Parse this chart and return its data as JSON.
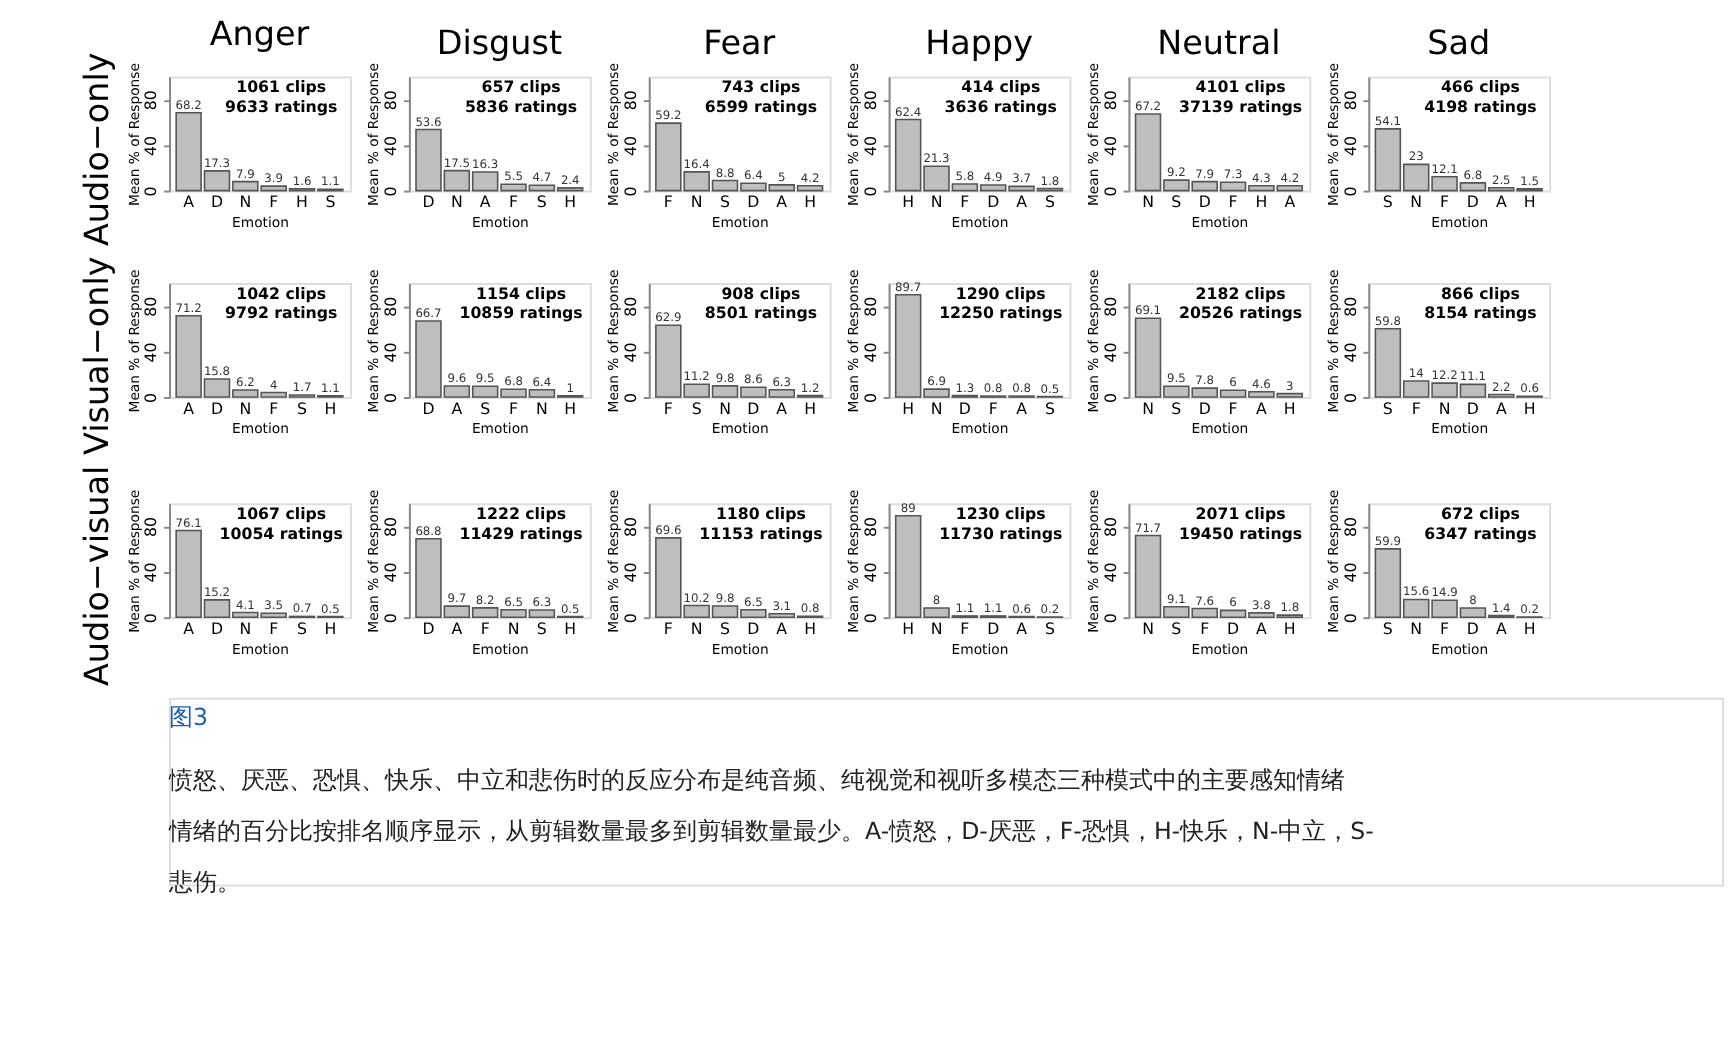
{
  "chart_data": [
    {
      "type": "bar",
      "title": "Anger",
      "xlabel": "Emotion",
      "ylabel": "Mean % of Response",
      "categories": [
        "A",
        "D",
        "N",
        "F",
        "H",
        "S"
      ],
      "values": [
        68.2,
        17.3,
        7.9,
        3.9,
        1.6,
        1.1
      ],
      "color": "#bebebe",
      "ylim": [
        0,
        100
      ],
      "yticks": [
        0,
        40,
        80
      ],
      "data_labels": true,
      "annotations": [
        "Audio−only",
        "1061 clips",
        "9633 ratings"
      ]
    },
    {
      "type": "bar",
      "title": "Disgust",
      "xlabel": "Emotion",
      "ylabel": "Mean % of Response",
      "categories": [
        "D",
        "N",
        "A",
        "F",
        "S",
        "H"
      ],
      "values": [
        53.6,
        17.5,
        16.3,
        5.5,
        4.7,
        2.4
      ],
      "color": "#bebebe",
      "ylim": [
        0,
        100
      ],
      "yticks": [
        0,
        40,
        80
      ],
      "data_labels": true,
      "annotations": [
        "657 clips",
        "5836 ratings"
      ]
    },
    {
      "type": "bar",
      "title": "Fear",
      "xlabel": "Emotion",
      "ylabel": "Mean % of Response",
      "categories": [
        "F",
        "N",
        "S",
        "D",
        "A",
        "H"
      ],
      "values": [
        59.2,
        16.4,
        8.8,
        6.4,
        5,
        4.2
      ],
      "color": "#bebebe",
      "ylim": [
        0,
        100
      ],
      "yticks": [
        0,
        40,
        80
      ],
      "data_labels": true,
      "annotations": [
        "743 clips",
        "6599 ratings"
      ]
    },
    {
      "type": "bar",
      "title": "Happy",
      "xlabel": "Emotion",
      "ylabel": "Mean % of Response",
      "categories": [
        "H",
        "N",
        "F",
        "D",
        "A",
        "S"
      ],
      "values": [
        62.4,
        21.3,
        5.8,
        4.9,
        3.7,
        1.8
      ],
      "color": "#bebebe",
      "ylim": [
        0,
        100
      ],
      "yticks": [
        0,
        40,
        80
      ],
      "data_labels": true,
      "annotations": [
        "414 clips",
        "3636 ratings"
      ]
    },
    {
      "type": "bar",
      "title": "Neutral",
      "xlabel": "Emotion",
      "ylabel": "Mean % of Response",
      "categories": [
        "N",
        "S",
        "D",
        "F",
        "H",
        "A"
      ],
      "values": [
        67.2,
        9.2,
        7.9,
        7.3,
        4.3,
        4.2
      ],
      "color": "#bebebe",
      "ylim": [
        0,
        100
      ],
      "yticks": [
        0,
        40,
        80
      ],
      "data_labels": true,
      "annotations": [
        "4101 clips",
        "37139 ratings"
      ]
    },
    {
      "type": "bar",
      "title": "Sad",
      "xlabel": "Emotion",
      "ylabel": "Mean % of Response",
      "categories": [
        "S",
        "N",
        "F",
        "D",
        "A",
        "H"
      ],
      "values": [
        54.1,
        23,
        12.1,
        6.8,
        2.5,
        1.5
      ],
      "color": "#bebebe",
      "ylim": [
        0,
        100
      ],
      "yticks": [
        0,
        40,
        80
      ],
      "data_labels": true,
      "annotations": [
        "466 clips",
        "4198 ratings"
      ]
    },
    {
      "type": "bar",
      "xlabel": "Emotion",
      "ylabel": "Mean % of Response",
      "categories": [
        "A",
        "D",
        "N",
        "F",
        "S",
        "H"
      ],
      "values": [
        71.2,
        15.8,
        6.2,
        4,
        1.7,
        1.1
      ],
      "color": "#bebebe",
      "ylim": [
        0,
        100
      ],
      "yticks": [
        0,
        40,
        80
      ],
      "data_labels": true,
      "annotations": [
        "Visual−only",
        "1042 clips",
        "9792 ratings"
      ]
    },
    {
      "type": "bar",
      "xlabel": "Emotion",
      "ylabel": "Mean % of Response",
      "categories": [
        "D",
        "A",
        "S",
        "F",
        "N",
        "H"
      ],
      "values": [
        66.7,
        9.6,
        9.5,
        6.8,
        6.4,
        1
      ],
      "color": "#bebebe",
      "ylim": [
        0,
        100
      ],
      "yticks": [
        0,
        40,
        80
      ],
      "data_labels": true,
      "annotations": [
        "1154 clips",
        "10859 ratings"
      ]
    },
    {
      "type": "bar",
      "xlabel": "Emotion",
      "ylabel": "Mean % of Response",
      "categories": [
        "F",
        "S",
        "N",
        "D",
        "A",
        "H"
      ],
      "values": [
        62.9,
        11.2,
        9.8,
        8.6,
        6.3,
        1.2
      ],
      "color": "#bebebe",
      "ylim": [
        0,
        100
      ],
      "yticks": [
        0,
        40,
        80
      ],
      "data_labels": true,
      "annotations": [
        "908 clips",
        "8501 ratings"
      ]
    },
    {
      "type": "bar",
      "xlabel": "Emotion",
      "ylabel": "Mean % of Response",
      "categories": [
        "H",
        "N",
        "D",
        "F",
        "A",
        "S"
      ],
      "values": [
        89.7,
        6.9,
        1.3,
        0.8,
        0.8,
        0.5
      ],
      "color": "#bebebe",
      "ylim": [
        0,
        100
      ],
      "yticks": [
        0,
        40,
        80
      ],
      "data_labels": true,
      "annotations": [
        "1290 clips",
        "12250 ratings"
      ]
    },
    {
      "type": "bar",
      "xlabel": "Emotion",
      "ylabel": "Mean % of Response",
      "categories": [
        "N",
        "S",
        "D",
        "F",
        "A",
        "H"
      ],
      "values": [
        69.1,
        9.5,
        7.8,
        6,
        4.6,
        3
      ],
      "color": "#bebebe",
      "ylim": [
        0,
        100
      ],
      "yticks": [
        0,
        40,
        80
      ],
      "data_labels": true,
      "annotations": [
        "2182 clips",
        "20526 ratings"
      ]
    },
    {
      "type": "bar",
      "xlabel": "Emotion",
      "ylabel": "Mean % of Response",
      "categories": [
        "S",
        "F",
        "N",
        "D",
        "A",
        "H"
      ],
      "values": [
        59.8,
        14,
        12.2,
        11.1,
        2.2,
        0.6
      ],
      "color": "#bebebe",
      "ylim": [
        0,
        100
      ],
      "yticks": [
        0,
        40,
        80
      ],
      "data_labels": true,
      "annotations": [
        "866 clips",
        "8154 ratings"
      ]
    },
    {
      "type": "bar",
      "xlabel": "Emotion",
      "ylabel": "Mean % of Response",
      "categories": [
        "A",
        "D",
        "N",
        "F",
        "S",
        "H"
      ],
      "values": [
        76.1,
        15.2,
        4.1,
        3.5,
        0.7,
        0.5
      ],
      "color": "#bebebe",
      "ylim": [
        0,
        100
      ],
      "yticks": [
        0,
        40,
        80
      ],
      "data_labels": true,
      "annotations": [
        "Audio−visual",
        "1067 clips",
        "10054 ratings"
      ]
    },
    {
      "type": "bar",
      "xlabel": "Emotion",
      "ylabel": "Mean % of Response",
      "categories": [
        "D",
        "A",
        "F",
        "N",
        "S",
        "H"
      ],
      "values": [
        68.8,
        9.7,
        8.2,
        6.5,
        6.3,
        0.5
      ],
      "color": "#bebebe",
      "ylim": [
        0,
        100
      ],
      "yticks": [
        0,
        40,
        80
      ],
      "data_labels": true,
      "annotations": [
        "1222 clips",
        "11429 ratings"
      ]
    },
    {
      "type": "bar",
      "xlabel": "Emotion",
      "ylabel": "Mean % of Response",
      "categories": [
        "F",
        "N",
        "S",
        "D",
        "A",
        "H"
      ],
      "values": [
        69.6,
        10.2,
        9.8,
        6.5,
        3.1,
        0.8
      ],
      "color": "#bebebe",
      "ylim": [
        0,
        100
      ],
      "yticks": [
        0,
        40,
        80
      ],
      "data_labels": true,
      "annotations": [
        "1180 clips",
        "11153 ratings"
      ]
    },
    {
      "type": "bar",
      "xlabel": "Emotion",
      "ylabel": "Mean % of Response",
      "categories": [
        "H",
        "N",
        "F",
        "D",
        "A",
        "S"
      ],
      "values": [
        89,
        8,
        1.1,
        1.1,
        0.6,
        0.2
      ],
      "color": "#bebebe",
      "ylim": [
        0,
        100
      ],
      "yticks": [
        0,
        40,
        80
      ],
      "data_labels": true,
      "annotations": [
        "1230 clips",
        "11730 ratings"
      ]
    },
    {
      "type": "bar",
      "xlabel": "Emotion",
      "ylabel": "Mean % of Response",
      "categories": [
        "N",
        "S",
        "F",
        "D",
        "A",
        "H"
      ],
      "values": [
        71.7,
        9.1,
        7.6,
        6,
        3.8,
        1.8
      ],
      "color": "#bebebe",
      "ylim": [
        0,
        100
      ],
      "yticks": [
        0,
        40,
        80
      ],
      "data_labels": true,
      "annotations": [
        "2071 clips",
        "19450 ratings"
      ]
    },
    {
      "type": "bar",
      "xlabel": "Emotion",
      "ylabel": "Mean % of Response",
      "categories": [
        "S",
        "N",
        "F",
        "D",
        "A",
        "H"
      ],
      "values": [
        59.9,
        15.6,
        14.9,
        8,
        1.4,
        0.2
      ],
      "color": "#bebebe",
      "ylim": [
        0,
        100
      ],
      "yticks": [
        0,
        40,
        80
      ],
      "data_labels": true,
      "annotations": [
        "672 clips",
        "6347 ratings"
      ]
    },
    {
      "type": "other",
      "annotations": [
        "图3",
        "愤怒、厌恶、恐惧、快乐、中立和悲伤时的反应分布是纯音频、纯视觉和视听多模态三种模式中的主要感知情绪",
        "情绪的百分比按排名顺序显示，从剪辑数量最多到剪辑数量最少。A-愤怒，D-厌恶，F-恐惧，H-快乐，N-中立，S-",
        "悲伤。"
      ]
    }
  ]
}
